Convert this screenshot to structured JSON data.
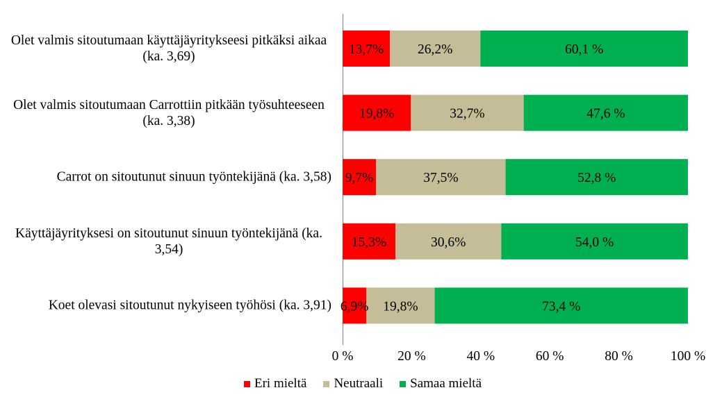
{
  "chart_data": {
    "type": "bar",
    "orientation": "horizontal",
    "stacked": "percent",
    "categories": [
      "Olet valmis sitoutumaan käyttäjäyritykseesi pitkäksi aikaa (ka. 3,69)",
      "Olet valmis sitoutumaan Carrottiin pitkään työsuhteeseen (ka. 3,38)",
      "Carrot on sitoutunut sinuun työntekijänä (ka. 3,58)",
      "Käyttäjäyrityksesi on sitoutunut sinuun työntekijänä (ka. 3,54)",
      "Koet olevasi sitoutunut nykyiseen työhösi (ka. 3,91)"
    ],
    "series": [
      {
        "name": "Eri mieltä",
        "color": "#FF0000",
        "values": [
          13.7,
          19.8,
          9.7,
          15.3,
          6.9
        ],
        "labels": [
          "13,7%",
          "19,8%",
          "9,7%",
          "15,3%",
          "6,9%"
        ]
      },
      {
        "name": "Neutraali",
        "color": "#C4BD97",
        "values": [
          26.2,
          32.7,
          37.5,
          30.6,
          19.8
        ],
        "labels": [
          "26,2%",
          "32,7%",
          "37,5%",
          "30,6%",
          "19,8%"
        ]
      },
      {
        "name": "Samaa mieltä",
        "color": "#00B050",
        "values": [
          60.1,
          47.6,
          52.8,
          54.0,
          73.4
        ],
        "labels": [
          "60,1 %",
          "47,6 %",
          "52,8 %",
          "54,0 %",
          "73,4 %"
        ]
      }
    ],
    "xlim": [
      0,
      100
    ],
    "x_ticks": [
      0,
      20,
      40,
      60,
      80,
      100
    ],
    "x_tick_labels": [
      "0 %",
      "20 %",
      "40 %",
      "60 %",
      "80 %",
      "100 %"
    ],
    "grid": false,
    "legend": "bottom"
  }
}
